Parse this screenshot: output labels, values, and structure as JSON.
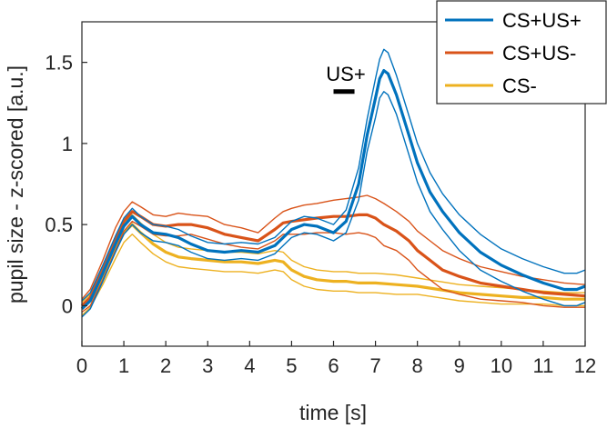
{
  "chart_data": {
    "type": "line",
    "xlabel": "time [s]",
    "ylabel": "pupil size - z-scored [a.u.]",
    "xlim": [
      0,
      12
    ],
    "ylim": [
      -0.25,
      1.75
    ],
    "xticks": [
      0,
      1,
      2,
      3,
      4,
      5,
      6,
      7,
      8,
      9,
      10,
      11,
      12
    ],
    "xtick_labels": [
      "0",
      "1",
      "2",
      "3",
      "4",
      "5",
      "6",
      "7",
      "8",
      "9",
      "10",
      "11",
      "12"
    ],
    "yticks": [
      0,
      0.5,
      1,
      1.5
    ],
    "ytick_labels": [
      "0",
      "0.5",
      "1",
      "1.5"
    ],
    "grid": false,
    "legend_position": "top-right",
    "colors": {
      "cs_plus_us_plus": "#0072BD",
      "cs_plus_us_minus": "#D95319",
      "cs_minus": "#EDB120"
    },
    "annotation": {
      "label": "US+",
      "bar_start_s": 6.0,
      "bar_end_s": 6.5,
      "bar_y": 1.32
    },
    "series": [
      {
        "name": "CS+US+",
        "key": "cs_plus_us_plus",
        "x": [
          0,
          0.2,
          0.5,
          0.8,
          1.0,
          1.2,
          1.4,
          1.7,
          2.0,
          2.3,
          2.6,
          3.0,
          3.4,
          3.8,
          4.2,
          4.6,
          4.8,
          5.0,
          5.3,
          5.6,
          6.0,
          6.3,
          6.6,
          6.8,
          7.0,
          7.1,
          7.2,
          7.3,
          7.5,
          7.8,
          8.0,
          8.3,
          8.6,
          9.0,
          9.5,
          10.0,
          10.5,
          11.0,
          11.5,
          11.8,
          12.0
        ],
        "mean": [
          -0.02,
          0.03,
          0.2,
          0.38,
          0.49,
          0.55,
          0.5,
          0.45,
          0.44,
          0.42,
          0.38,
          0.34,
          0.33,
          0.34,
          0.33,
          0.37,
          0.42,
          0.47,
          0.5,
          0.49,
          0.45,
          0.52,
          0.75,
          1.05,
          1.28,
          1.4,
          1.45,
          1.43,
          1.3,
          1.05,
          0.88,
          0.7,
          0.58,
          0.45,
          0.33,
          0.25,
          0.19,
          0.14,
          0.1,
          0.1,
          0.12
        ],
        "upper": [
          0.03,
          0.08,
          0.25,
          0.43,
          0.54,
          0.6,
          0.55,
          0.5,
          0.49,
          0.47,
          0.43,
          0.39,
          0.38,
          0.39,
          0.38,
          0.42,
          0.47,
          0.52,
          0.55,
          0.54,
          0.5,
          0.59,
          0.85,
          1.15,
          1.4,
          1.52,
          1.58,
          1.56,
          1.42,
          1.17,
          1.0,
          0.82,
          0.69,
          0.56,
          0.44,
          0.35,
          0.29,
          0.24,
          0.2,
          0.2,
          0.22
        ],
        "lower": [
          -0.07,
          -0.02,
          0.15,
          0.33,
          0.44,
          0.5,
          0.45,
          0.4,
          0.39,
          0.37,
          0.33,
          0.29,
          0.28,
          0.29,
          0.28,
          0.32,
          0.37,
          0.42,
          0.45,
          0.44,
          0.4,
          0.45,
          0.65,
          0.95,
          1.16,
          1.28,
          1.32,
          1.3,
          1.18,
          0.93,
          0.76,
          0.58,
          0.47,
          0.34,
          0.22,
          0.15,
          0.09,
          0.04,
          0.0,
          0.0,
          0.02
        ]
      },
      {
        "name": "CS+US-",
        "key": "cs_plus_us_minus",
        "x": [
          0,
          0.2,
          0.5,
          0.8,
          1.0,
          1.2,
          1.4,
          1.7,
          2.0,
          2.3,
          2.6,
          3.0,
          3.4,
          3.8,
          4.2,
          4.6,
          4.8,
          5.0,
          5.3,
          5.6,
          6.0,
          6.3,
          6.6,
          6.8,
          7.0,
          7.2,
          7.5,
          7.8,
          8.0,
          8.3,
          8.6,
          9.0,
          9.5,
          10.0,
          10.5,
          11.0,
          11.5,
          12.0
        ],
        "mean": [
          0.0,
          0.05,
          0.22,
          0.41,
          0.52,
          0.58,
          0.55,
          0.5,
          0.49,
          0.5,
          0.5,
          0.48,
          0.44,
          0.42,
          0.4,
          0.47,
          0.51,
          0.52,
          0.53,
          0.54,
          0.55,
          0.55,
          0.56,
          0.56,
          0.54,
          0.5,
          0.46,
          0.4,
          0.34,
          0.28,
          0.22,
          0.18,
          0.14,
          0.12,
          0.1,
          0.08,
          0.07,
          0.06
        ],
        "upper": [
          0.04,
          0.1,
          0.28,
          0.48,
          0.58,
          0.64,
          0.61,
          0.56,
          0.55,
          0.57,
          0.56,
          0.55,
          0.5,
          0.48,
          0.45,
          0.54,
          0.58,
          0.6,
          0.62,
          0.63,
          0.65,
          0.66,
          0.67,
          0.68,
          0.66,
          0.63,
          0.58,
          0.52,
          0.46,
          0.4,
          0.34,
          0.29,
          0.24,
          0.21,
          0.18,
          0.16,
          0.14,
          0.13
        ],
        "lower": [
          -0.04,
          0.0,
          0.16,
          0.34,
          0.46,
          0.52,
          0.49,
          0.44,
          0.43,
          0.43,
          0.44,
          0.41,
          0.38,
          0.36,
          0.35,
          0.4,
          0.44,
          0.44,
          0.44,
          0.45,
          0.45,
          0.44,
          0.45,
          0.44,
          0.42,
          0.37,
          0.34,
          0.28,
          0.22,
          0.16,
          0.1,
          0.07,
          0.04,
          0.03,
          0.02,
          0.0,
          -0.01,
          -0.01
        ]
      },
      {
        "name": "CS-",
        "key": "cs_minus",
        "x": [
          0,
          0.2,
          0.5,
          0.8,
          1.0,
          1.2,
          1.4,
          1.7,
          2.0,
          2.3,
          2.6,
          3.0,
          3.4,
          3.8,
          4.2,
          4.6,
          4.8,
          5.0,
          5.3,
          5.6,
          6.0,
          6.3,
          6.6,
          7.0,
          7.5,
          8.0,
          8.5,
          9.0,
          9.5,
          10.0,
          10.5,
          11.0,
          11.5,
          12.0
        ],
        "mean": [
          -0.02,
          0.03,
          0.18,
          0.35,
          0.45,
          0.5,
          0.45,
          0.38,
          0.33,
          0.3,
          0.29,
          0.28,
          0.27,
          0.27,
          0.26,
          0.28,
          0.27,
          0.22,
          0.18,
          0.16,
          0.15,
          0.15,
          0.14,
          0.14,
          0.13,
          0.12,
          0.1,
          0.08,
          0.07,
          0.06,
          0.05,
          0.05,
          0.04,
          0.04
        ],
        "upper": [
          0.02,
          0.07,
          0.23,
          0.41,
          0.51,
          0.56,
          0.51,
          0.44,
          0.39,
          0.36,
          0.35,
          0.34,
          0.33,
          0.33,
          0.32,
          0.34,
          0.33,
          0.28,
          0.24,
          0.22,
          0.21,
          0.21,
          0.2,
          0.2,
          0.19,
          0.17,
          0.15,
          0.13,
          0.12,
          0.11,
          0.1,
          0.09,
          0.08,
          0.08
        ],
        "lower": [
          -0.06,
          -0.01,
          0.13,
          0.29,
          0.39,
          0.44,
          0.39,
          0.32,
          0.27,
          0.24,
          0.23,
          0.22,
          0.21,
          0.21,
          0.2,
          0.22,
          0.21,
          0.16,
          0.12,
          0.1,
          0.09,
          0.09,
          0.08,
          0.08,
          0.07,
          0.07,
          0.05,
          0.03,
          0.02,
          0.01,
          0.01,
          0.01,
          0.0,
          0.0
        ]
      }
    ]
  }
}
